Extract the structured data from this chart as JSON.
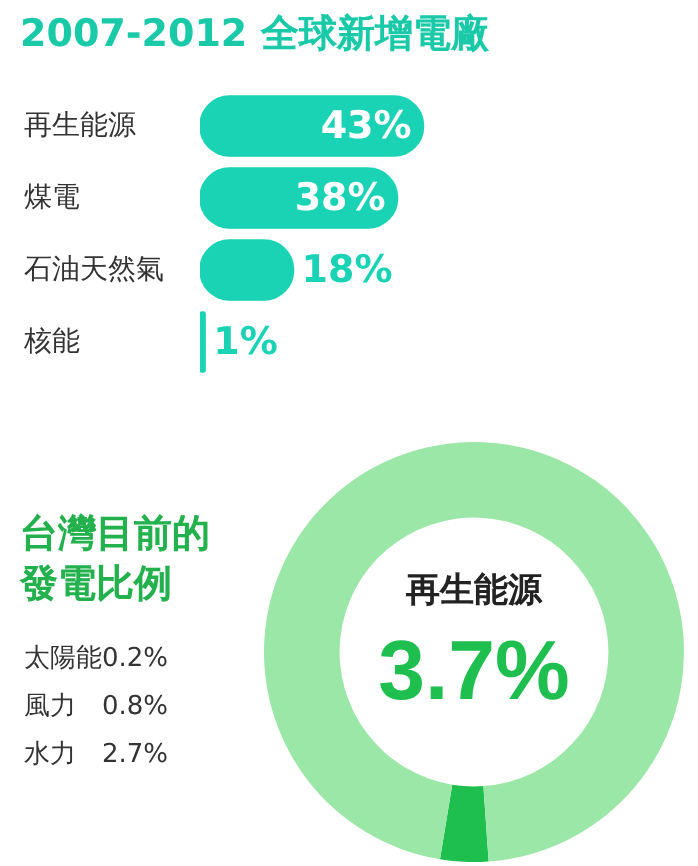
{
  "chart_data": [
    {
      "type": "bar",
      "orientation": "horizontal",
      "title": "2007-2012 全球新增電廠",
      "categories": [
        "再生能源",
        "煤電",
        "石油天然氣",
        "核能"
      ],
      "values": [
        43,
        38,
        18,
        1
      ],
      "value_labels": [
        "43%",
        "38%",
        "18%",
        "1%"
      ],
      "color": "#19d3b4",
      "legend": false
    },
    {
      "type": "donut",
      "title": "台灣目前的發電比例",
      "categories": [
        "再生能源",
        null
      ],
      "values": [
        3.7,
        96.3
      ],
      "value_labels": [
        "3.7%",
        null
      ],
      "colors": [
        "#1fbf4f",
        "#9be7a7"
      ],
      "legend": false,
      "annotations": [
        "太陽能0.2%",
        "風力　0.8%",
        "水力　2.7%"
      ]
    }
  ]
}
